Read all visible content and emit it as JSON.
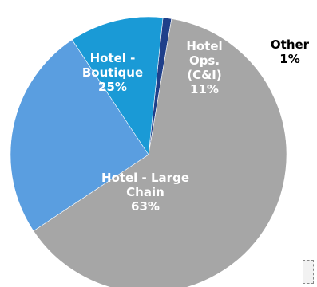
{
  "chart_data": {
    "type": "pie",
    "title": "",
    "start_angle_deg": 6,
    "direction": "clockwise",
    "slices": [
      {
        "name": "Other",
        "value": 1,
        "color": "#1f3f8a",
        "label_lines": [
          "Other",
          "1%"
        ],
        "label_color": "#000000"
      },
      {
        "name": "Hotel - Large Chain",
        "value": 63,
        "color": "#a6a6a6",
        "label_lines": [
          "Hotel - Large",
          "Chain",
          "63%"
        ],
        "label_color": "#ffffff"
      },
      {
        "name": "Hotel - Boutique",
        "value": 25,
        "color": "#5a9ee0",
        "label_lines": [
          "Hotel -",
          "Boutique",
          "25%"
        ],
        "label_color": "#ffffff"
      },
      {
        "name": "Hotel Ops. (C&I)",
        "value": 11,
        "color": "#1a9ad6",
        "label_lines": [
          "Hotel",
          "Ops.",
          "(C&I)",
          "11%"
        ],
        "label_color": "#ffffff"
      }
    ]
  }
}
